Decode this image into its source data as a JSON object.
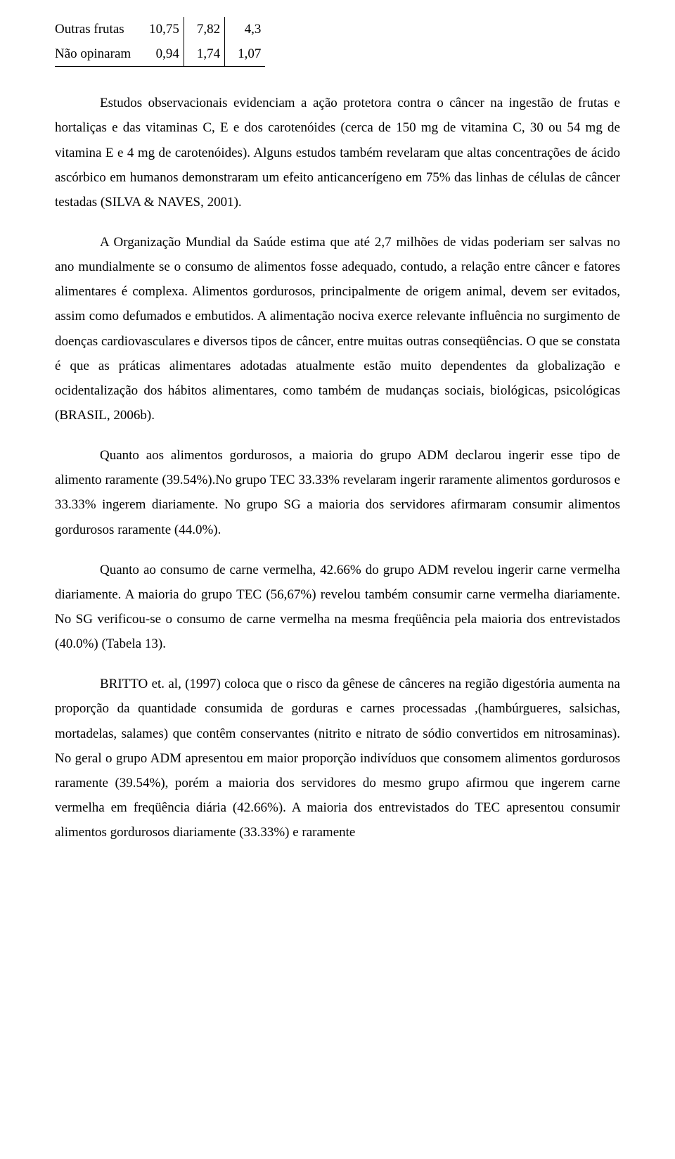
{
  "table": {
    "rows": [
      {
        "label": "Outras frutas",
        "c1": "10,75",
        "c2": "7,82",
        "c3": "4,3"
      },
      {
        "label": "Não opinaram",
        "c1": "0,94",
        "c2": "1,74",
        "c3": "1,07"
      }
    ]
  },
  "paragraphs": {
    "p1": "Estudos observacionais evidenciam a ação protetora contra o câncer na ingestão de frutas e hortaliças e das vitaminas C, E e dos carotenóides (cerca de 150 mg de vitamina C, 30 ou 54 mg de vitamina E e 4 mg de carotenóides). Alguns estudos também revelaram que altas concentrações de ácido ascórbico em humanos demonstraram um efeito anticancerígeno em 75% das linhas de células de câncer testadas (SILVA & NAVES, 2001).",
    "p2": "A Organização Mundial da Saúde estima que até 2,7 milhões de vidas poderiam ser salvas no ano mundialmente se o consumo de alimentos fosse adequado, contudo, a relação entre câncer e fatores alimentares é complexa. Alimentos gordurosos, principalmente de origem animal, devem ser evitados, assim como defumados e embutidos. A alimentação nociva exerce relevante influência no surgimento de doenças cardiovasculares e diversos tipos de câncer, entre muitas outras conseqüências. O que se constata é que as práticas alimentares adotadas atualmente estão muito dependentes da globalização e ocidentalização dos hábitos alimentares, como também de mudanças sociais, biológicas, psicológicas (BRASIL, 2006b).",
    "p3": "Quanto aos alimentos gordurosos, a maioria do grupo ADM declarou ingerir esse tipo de alimento raramente (39.54%).No grupo TEC 33.33%  revelaram ingerir raramente alimentos gordurosos e 33.33%  ingerem diariamente. No grupo SG a maioria dos servidores afirmaram consumir alimentos gordurosos raramente (44.0%).",
    "p4": "Quanto ao consumo de carne vermelha, 42.66% do grupo ADM revelou ingerir carne vermelha diariamente. A maioria do grupo TEC (56,67%) revelou também consumir carne vermelha diariamente. No SG verificou-se o consumo de carne vermelha na mesma freqüência pela maioria dos entrevistados (40.0%) (Tabela 13).",
    "p5": "BRITTO et. al, (1997) coloca  que o risco da gênese de cânceres na região digestória aumenta na proporção da quantidade consumida de gorduras e  carnes processadas ,(hambúrgueres, salsichas, mortadelas, salames) que contêm conservantes (nitrito e nitrato de sódio convertidos em nitrosaminas). No geral o grupo ADM apresentou em maior proporção indivíduos que consomem alimentos gordurosos raramente (39.54%), porém a maioria dos servidores do mesmo grupo afirmou que ingerem carne vermelha em freqüência diária (42.66%). A maioria dos entrevistados do TEC apresentou consumir alimentos gordurosos diariamente (33.33%) e raramente"
  }
}
